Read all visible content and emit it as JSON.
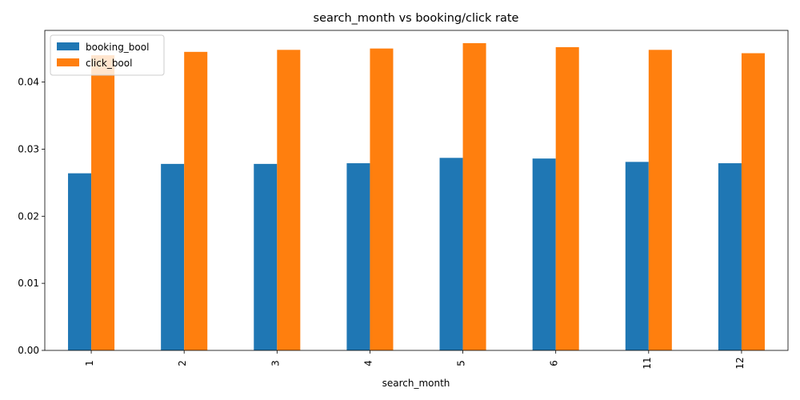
{
  "chart_data": {
    "type": "bar",
    "title": "search_month vs booking/click rate",
    "xlabel": "search_month",
    "ylabel": "",
    "categories": [
      "1",
      "2",
      "3",
      "4",
      "5",
      "6",
      "11",
      "12"
    ],
    "series": [
      {
        "name": "booking_bool",
        "color": "#1f77b4",
        "values": [
          0.0264,
          0.0278,
          0.0278,
          0.0279,
          0.0287,
          0.0286,
          0.0281,
          0.0279
        ]
      },
      {
        "name": "click_bool",
        "color": "#ff7f0e",
        "values": [
          0.044,
          0.0445,
          0.0448,
          0.045,
          0.0458,
          0.0452,
          0.0448,
          0.0443
        ]
      }
    ],
    "ylim": [
      0,
      0.0477
    ],
    "yticks": [
      "0.00",
      "0.01",
      "0.02",
      "0.03",
      "0.04"
    ],
    "ytick_values": [
      0,
      0.01,
      0.02,
      0.03,
      0.04
    ],
    "legend_position": "upper-left",
    "grid": false
  }
}
